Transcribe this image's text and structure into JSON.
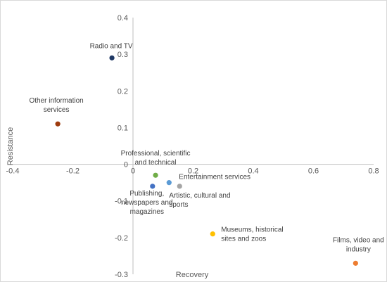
{
  "chart_data": {
    "type": "scatter",
    "title": "",
    "xlabel": "Recovery",
    "ylabel": "Resistance",
    "xlim": [
      -0.4,
      0.8
    ],
    "ylim": [
      -0.3,
      0.4
    ],
    "x_ticks": [
      -0.4,
      -0.2,
      0,
      0.2,
      0.4,
      0.6,
      0.8
    ],
    "y_ticks": [
      -0.3,
      -0.2,
      -0.1,
      0,
      0.1,
      0.2,
      0.3,
      0.4
    ],
    "grid": false,
    "legend": "none",
    "points": [
      {
        "label": "Radio and TV",
        "x": -0.07,
        "y": 0.29,
        "color": "#1f3864"
      },
      {
        "label": "Other information services",
        "x": -0.25,
        "y": 0.11,
        "color": "#9e3b0e"
      },
      {
        "label": "Professional, scientific and technical",
        "x": 0.075,
        "y": -0.03,
        "color": "#70ad47"
      },
      {
        "label": "Publishing, newspapers and magazines",
        "x": 0.065,
        "y": -0.06,
        "color": "#4472c4"
      },
      {
        "label": "Entertainment  services",
        "x": 0.12,
        "y": -0.05,
        "color": "#5b9bd5"
      },
      {
        "label": "Artistic, cultural and sports",
        "x": 0.155,
        "y": -0.06,
        "color": "#a5a5a5"
      },
      {
        "label": "Museums, historical sites and zoos",
        "x": 0.265,
        "y": -0.19,
        "color": "#ffc000"
      },
      {
        "label": "Films, video and industry",
        "x": 0.74,
        "y": -0.27,
        "color": "#ed7d31"
      }
    ]
  }
}
